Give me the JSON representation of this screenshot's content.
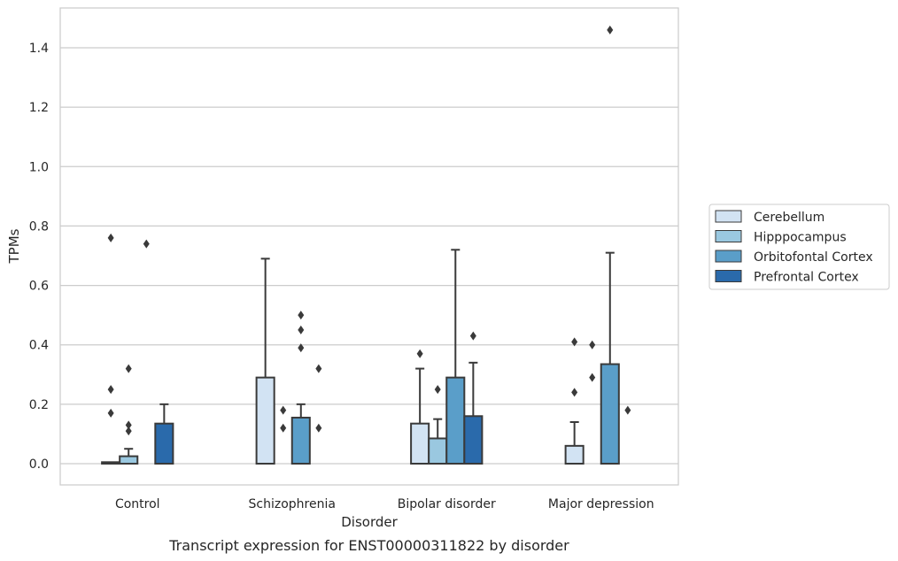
{
  "chart_data": {
    "type": "bar",
    "caption": "Transcript expression for ENST00000311822 by disorder",
    "xlabel": "Disorder",
    "ylabel": "TPMs",
    "ylim": [
      -0.07,
      1.54
    ],
    "yticks": [
      0.0,
      0.2,
      0.4,
      0.6,
      0.8,
      1.0,
      1.2,
      1.4
    ],
    "ytick_labels": [
      "0.0",
      "0.2",
      "0.4",
      "0.6",
      "0.8",
      "1.0",
      "1.2",
      "1.4"
    ],
    "grid": "horizontal",
    "legend_position": "right",
    "categories": [
      "Control",
      "Schizophrenia",
      "Bipolar disorder",
      "Major depression"
    ],
    "series": [
      {
        "name": "Cerebellum",
        "color": "#d2e3f3",
        "values": [
          0.005,
          0.29,
          0.135,
          0.06
        ],
        "whisker_top": [
          null,
          0.69,
          0.32,
          0.14
        ],
        "outliers": [
          [
            0.76,
            0.25,
            0.17
          ],
          [],
          [
            0.37
          ],
          [
            0.41,
            0.24
          ]
        ]
      },
      {
        "name": "Hipppocampus",
        "color": "#9ac8e0",
        "values": [
          0.025,
          0.0,
          0.085,
          0.0
        ],
        "whisker_top": [
          0.05,
          null,
          0.15,
          null
        ],
        "outliers": [
          [
            0.32,
            0.13,
            0.11
          ],
          [
            0.18,
            0.12
          ],
          [
            0.25
          ],
          [
            0.4,
            0.29
          ]
        ]
      },
      {
        "name": "Orbitofontal Cortex",
        "color": "#5a9ec9",
        "values": [
          0.0,
          0.155,
          0.29,
          0.335
        ],
        "whisker_top": [
          null,
          0.2,
          0.72,
          0.71
        ],
        "outliers": [
          [
            0.74
          ],
          [
            0.5,
            0.45,
            0.39
          ],
          [],
          [
            1.46
          ]
        ]
      },
      {
        "name": "Prefrontal Cortex",
        "color": "#2a6aab",
        "values": [
          0.135,
          0.0,
          0.16,
          0.0
        ],
        "whisker_top": [
          0.2,
          null,
          0.34,
          null
        ],
        "outliers": [
          [],
          [
            0.32,
            0.12
          ],
          [
            0.43
          ],
          [
            0.18
          ]
        ]
      }
    ]
  }
}
